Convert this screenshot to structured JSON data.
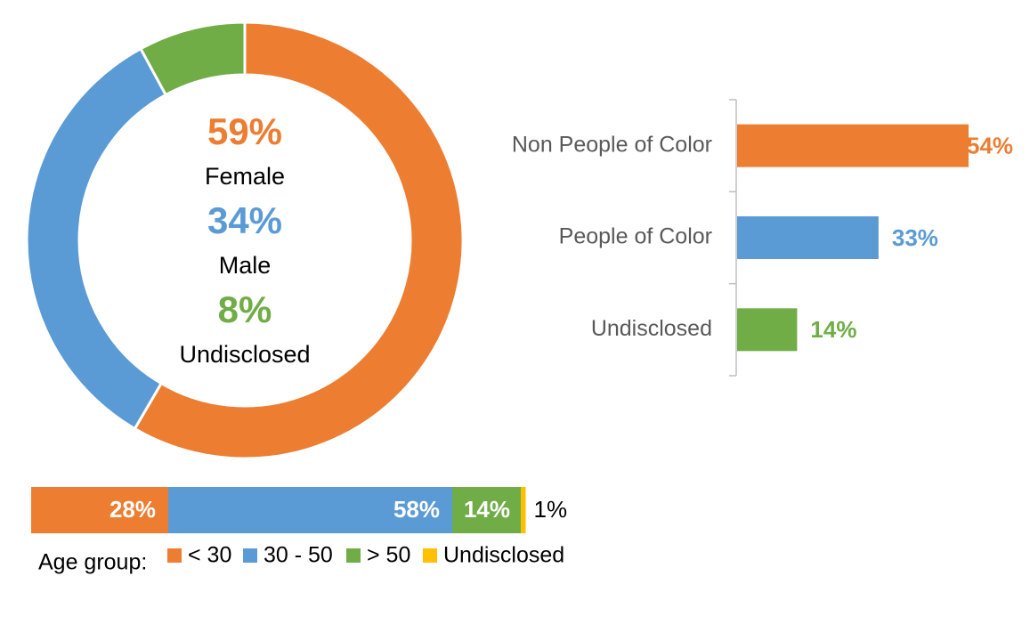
{
  "colors": {
    "orange": "#ED7D31",
    "blue": "#5B9BD5",
    "green": "#70AD47",
    "yellow": "#FFC000",
    "axis": "#BFBFBF",
    "text": "#000000",
    "category_text": "#595959",
    "white": "#FFFFFF"
  },
  "chart_data": [
    {
      "type": "pie",
      "subtype": "donut",
      "categories": [
        "Female",
        "Male",
        "Undisclosed"
      ],
      "values": [
        59,
        34,
        8
      ],
      "value_labels": [
        "59%",
        "34%",
        "8%"
      ],
      "colors": [
        "#ED7D31",
        "#5B9BD5",
        "#70AD47"
      ],
      "center_text": [
        {
          "value": "59%",
          "label": "Female"
        },
        {
          "value": "34%",
          "label": "Male"
        },
        {
          "value": "8%",
          "label": "Undisclosed"
        }
      ]
    },
    {
      "type": "bar",
      "orientation": "horizontal",
      "categories": [
        "Non People of Color",
        "People of Color",
        "Undisclosed"
      ],
      "values": [
        54,
        33,
        14
      ],
      "value_labels": [
        "54%",
        "33%",
        "14%"
      ],
      "colors": [
        "#ED7D31",
        "#5B9BD5",
        "#70AD47"
      ],
      "xlim": [
        0,
        54
      ],
      "grid": false
    },
    {
      "type": "bar",
      "orientation": "horizontal",
      "stacked": true,
      "legend_title": "Age group:",
      "legend_position": "bottom",
      "series": [
        {
          "name": "< 30",
          "values": [
            28
          ],
          "label": "28%",
          "color": "#ED7D31"
        },
        {
          "name": "30 - 50",
          "values": [
            58
          ],
          "label": "58%",
          "color": "#5B9BD5"
        },
        {
          "name": "> 50",
          "values": [
            14
          ],
          "label": "14%",
          "color": "#70AD47"
        },
        {
          "name": "Undisclosed",
          "values": [
            1
          ],
          "label": "1%",
          "color": "#FFC000"
        }
      ]
    }
  ]
}
